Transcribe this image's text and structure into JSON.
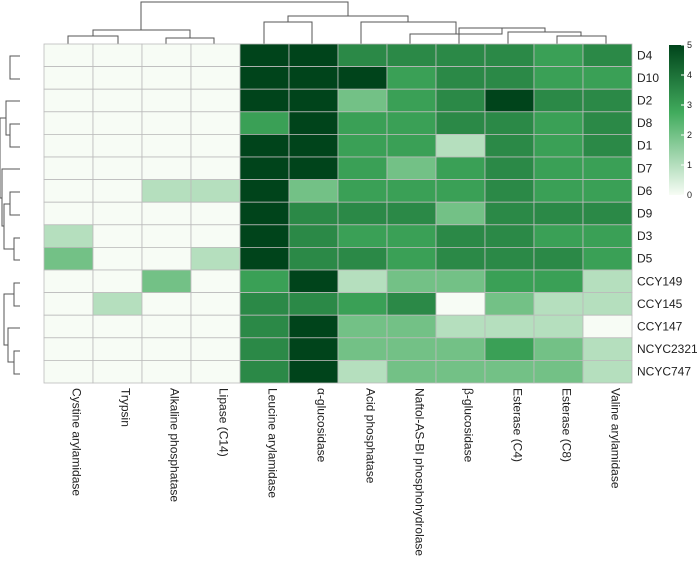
{
  "chart_data": {
    "type": "heatmap",
    "title": "",
    "xlabel": "",
    "ylabel": "",
    "columns": [
      "Cystine arylamidase",
      "Trypsin",
      "Alkaline phosphatase",
      "Lipase (C14)",
      "Leucine arylamidase",
      "α-glucosidase",
      "Acid phosphatase",
      "Naftol-AS-BI phosphohydrolase",
      "β-glucosidase",
      "Esterase (C4)",
      "Esterase (C8)",
      "Valine arylamidase"
    ],
    "rows": [
      "D4",
      "D10",
      "D2",
      "D8",
      "D1",
      "D7",
      "D6",
      "D9",
      "D3",
      "D5",
      "CCY149",
      "CCY145",
      "CCY147",
      "NCYC2321",
      "NCYC747"
    ],
    "values": [
      [
        0,
        0,
        0,
        0,
        5,
        5,
        3.5,
        3.5,
        3.5,
        3.5,
        3,
        3.5
      ],
      [
        0,
        0,
        0,
        0,
        5,
        5,
        5,
        3,
        3.5,
        3.5,
        3,
        3
      ],
      [
        0,
        0,
        0,
        0,
        5,
        5,
        2,
        3,
        3.5,
        5,
        3.5,
        3.5
      ],
      [
        0,
        0,
        0,
        0,
        3,
        5,
        3,
        3,
        3.5,
        3.5,
        3,
        3.5
      ],
      [
        0,
        0,
        0,
        0,
        5,
        5,
        3,
        3,
        1,
        3.5,
        3,
        3.5
      ],
      [
        0,
        0,
        0,
        0,
        5,
        5,
        3,
        2,
        3,
        3.5,
        3,
        3
      ],
      [
        0,
        0,
        1,
        1,
        5,
        2,
        3,
        3,
        3,
        3.5,
        3,
        3
      ],
      [
        0,
        0,
        0,
        0,
        5,
        3.5,
        3.5,
        3.5,
        2,
        3.5,
        3.5,
        3.5
      ],
      [
        1,
        0,
        0,
        0,
        5,
        3.5,
        3,
        3,
        3.5,
        3.5,
        3,
        3
      ],
      [
        2,
        0,
        0,
        1,
        5,
        3.5,
        3.5,
        3,
        3.5,
        3.5,
        3.5,
        3
      ],
      [
        0,
        0,
        2,
        0,
        3,
        5,
        1,
        2,
        2,
        3,
        3,
        1
      ],
      [
        0,
        1,
        0,
        0,
        3.5,
        3.5,
        3,
        3.5,
        0,
        2,
        1,
        1
      ],
      [
        0,
        0,
        0,
        0,
        3.5,
        5,
        2,
        2,
        1,
        1,
        1,
        0
      ],
      [
        0,
        0,
        0,
        0,
        3.5,
        5,
        2,
        2,
        2,
        3,
        2,
        1
      ],
      [
        0,
        0,
        0,
        0,
        3.5,
        5,
        1,
        2,
        2,
        2,
        2,
        1
      ]
    ],
    "color_scale": {
      "min": 0,
      "max": 5,
      "ticks": [
        {
          "value": 0,
          "label": "0"
        },
        {
          "value": 1,
          "label": "1"
        },
        {
          "value": 2,
          "label": "2"
        },
        {
          "value": 3,
          "label": "3"
        },
        {
          "value": 4,
          "label": "4"
        },
        {
          "value": 5,
          "label": "5"
        }
      ],
      "low_color": "#f7fcf5",
      "mid_color": "#41ab5d",
      "high_color": "#00441b"
    },
    "cell_border_color": "#bbbbbb",
    "dendrogram_color": "#555555",
    "legend_position": "right",
    "column_dendrogram": true,
    "row_dendrogram": true
  }
}
